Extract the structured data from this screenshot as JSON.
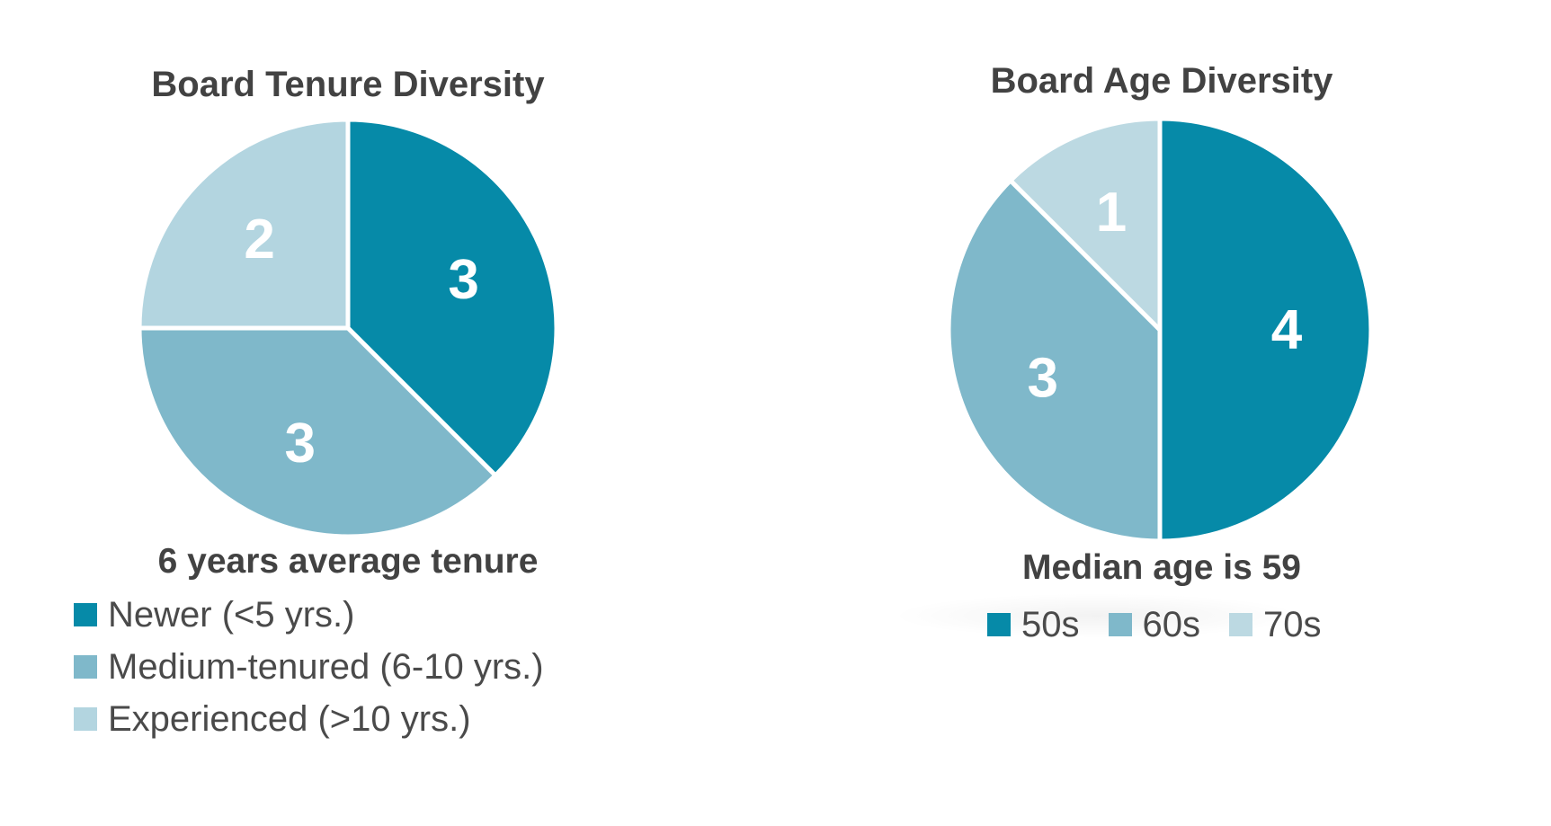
{
  "charts": [
    {
      "title": "Board Tenure Diversity",
      "subtitle": "6 years average tenure"
    },
    {
      "title": "Board Age Diversity",
      "subtitle": "Median age is 59"
    }
  ],
  "chart_data": [
    {
      "type": "pie",
      "title": "Board Tenure Diversity",
      "subtitle": "6 years average tenure",
      "categories": [
        "Newer (<5 yrs.)",
        "Medium-tenured (6-10 yrs.)",
        "Experienced (>10 yrs.)"
      ],
      "values": [
        3,
        3,
        2
      ],
      "data_labels": [
        "3",
        "3",
        "2"
      ],
      "colors": [
        "#068aa8",
        "#7fb8ca",
        "#b3d5e0"
      ],
      "start": "12 o'clock",
      "direction": "clockwise",
      "legend_position": "bottom-left"
    },
    {
      "type": "pie",
      "title": "Board Age Diversity",
      "subtitle": "Median age is 59",
      "categories": [
        "50s",
        "60s",
        "70s"
      ],
      "values": [
        4,
        3,
        1
      ],
      "data_labels": [
        "4",
        "3",
        "1"
      ],
      "colors": [
        "#068aa8",
        "#7fb8ca",
        "#bcd9e2"
      ],
      "start": "12 o'clock",
      "direction": "clockwise",
      "legend_position": "bottom"
    }
  ]
}
